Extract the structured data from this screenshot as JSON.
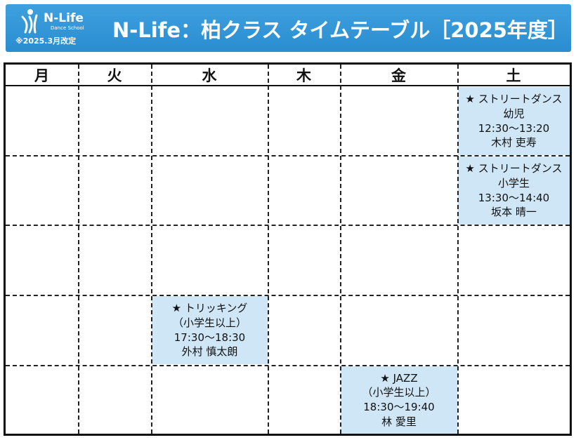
{
  "header": {
    "logo_name": "N-Life",
    "logo_sub": "Dance School",
    "revised": "※2025.3月改定",
    "title": "N-Life：柏クラス タイムテーブル［2025年度］",
    "background_color": "#2f93d4"
  },
  "days": [
    "月",
    "火",
    "水",
    "木",
    "金",
    "土"
  ],
  "classes": [
    {
      "star": "★",
      "name": "ストリートダンス",
      "level": "幼児",
      "time": "12:30〜13:20",
      "teacher": "木村 吏寿",
      "day": "土",
      "row": 1
    },
    {
      "star": "★",
      "name": "ストリートダンス",
      "level": "小学生",
      "time": "13:30〜14:40",
      "teacher": "坂本 晴一",
      "day": "土",
      "row": 2
    },
    {
      "star": "★",
      "name": "トリッキング",
      "level": "（小学生以上）",
      "time": "17:30〜18:30",
      "teacher": "外村 慎太朗",
      "day": "水",
      "row": 4
    },
    {
      "star": "★",
      "name": "JAZZ",
      "level": "（小学生以上）",
      "time": "18:30〜19:40",
      "teacher": "林 愛里",
      "day": "金",
      "row": 5
    }
  ],
  "cell_color": "#cfe6f7"
}
